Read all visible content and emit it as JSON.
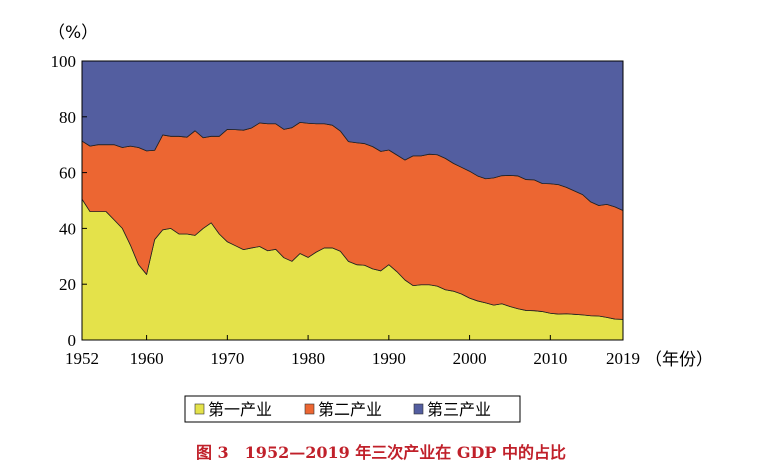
{
  "chart_data": {
    "type": "area",
    "stacked": true,
    "yunit": "（%）",
    "xunit": "（年份）",
    "ylim": [
      0,
      100
    ],
    "yticks": [
      0,
      20,
      40,
      60,
      80,
      100
    ],
    "xticks": [
      1952,
      1960,
      1970,
      1980,
      1990,
      2000,
      2010,
      2019
    ],
    "xlim": [
      1952,
      2019
    ],
    "legend_placement": "bottom",
    "colors": {
      "primary": "#E4E24A",
      "secondary": "#EC6632",
      "tertiary": "#535EA0"
    },
    "x": [
      1952,
      1953,
      1954,
      1955,
      1956,
      1957,
      1958,
      1959,
      1960,
      1961,
      1962,
      1963,
      1964,
      1965,
      1966,
      1967,
      1968,
      1969,
      1970,
      1971,
      1972,
      1973,
      1974,
      1975,
      1976,
      1977,
      1978,
      1979,
      1980,
      1981,
      1982,
      1983,
      1984,
      1985,
      1986,
      1987,
      1988,
      1989,
      1990,
      1991,
      1992,
      1993,
      1994,
      1995,
      1996,
      1997,
      1998,
      1999,
      2000,
      2001,
      2002,
      2003,
      2004,
      2005,
      2006,
      2007,
      2008,
      2009,
      2010,
      2011,
      2012,
      2013,
      2014,
      2015,
      2016,
      2017,
      2018,
      2019
    ],
    "series": [
      {
        "name": "第一产业",
        "values": [
          50.5,
          46,
          46,
          46,
          43,
          40,
          34,
          27,
          23.5,
          36,
          39.5,
          40,
          38,
          38,
          37.5,
          40,
          42,
          38,
          35.2,
          33.8,
          32.4,
          33,
          33.5,
          32,
          32.5,
          29.5,
          28.2,
          31,
          29.6,
          31.5,
          33,
          33,
          31.8,
          28.2,
          27,
          26.8,
          25.5,
          24.8,
          27,
          24.5,
          21.5,
          19.5,
          19.8,
          19.8,
          19.3,
          18,
          17.5,
          16.5,
          15,
          14,
          13.3,
          12.5,
          13,
          12,
          11.2,
          10.6,
          10.5,
          10.2,
          9.6,
          9.3,
          9.4,
          9.2,
          9,
          8.7,
          8.6,
          8.1,
          7.5,
          7.4
        ]
      },
      {
        "name": "第二产业",
        "values": [
          20.8,
          23.5,
          24,
          24,
          27,
          29,
          35.5,
          42,
          44.3,
          32,
          34,
          33,
          35,
          34.7,
          37.5,
          32.5,
          31,
          35,
          40.3,
          41.6,
          42.8,
          43,
          44.3,
          45.5,
          45,
          46,
          47.9,
          47,
          48.1,
          46,
          44.5,
          44,
          43.1,
          42.9,
          43.7,
          43.6,
          43.8,
          42.8,
          41.1,
          41.8,
          43,
          46.5,
          46.2,
          46.8,
          47.1,
          47.1,
          45.8,
          45.4,
          45.5,
          44.8,
          44.5,
          45.6,
          45.9,
          47,
          47.6,
          46.9,
          46.9,
          45.9,
          46.4,
          46.4,
          45.3,
          44.2,
          43.1,
          40.8,
          39.6,
          40.5,
          40.2,
          39
        ]
      },
      {
        "name": "第三产业",
        "values": [
          28.7,
          30.5,
          30,
          30,
          30,
          31,
          30.5,
          31,
          32.2,
          32,
          26.5,
          27,
          27,
          27.3,
          25,
          27.5,
          27,
          27,
          24.5,
          24.6,
          24.8,
          24,
          22.2,
          22.5,
          22.5,
          24.5,
          23.9,
          22,
          22.3,
          22.5,
          22.5,
          23,
          25.1,
          28.9,
          29.3,
          29.6,
          30.7,
          32.4,
          31.9,
          33.7,
          35.5,
          34,
          34,
          33.4,
          33.6,
          34.9,
          36.7,
          38.1,
          39.5,
          41.2,
          42.2,
          41.9,
          41.1,
          41,
          41.2,
          42.5,
          42.6,
          43.9,
          44,
          44.3,
          45.3,
          46.6,
          47.9,
          50.5,
          51.8,
          51.4,
          52.3,
          53.6
        ]
      }
    ],
    "legend": [
      "第一产业",
      "第二产业",
      "第三产业"
    ]
  },
  "caption": "图 3　1952—2019 年三次产业在 GDP 中的占比"
}
